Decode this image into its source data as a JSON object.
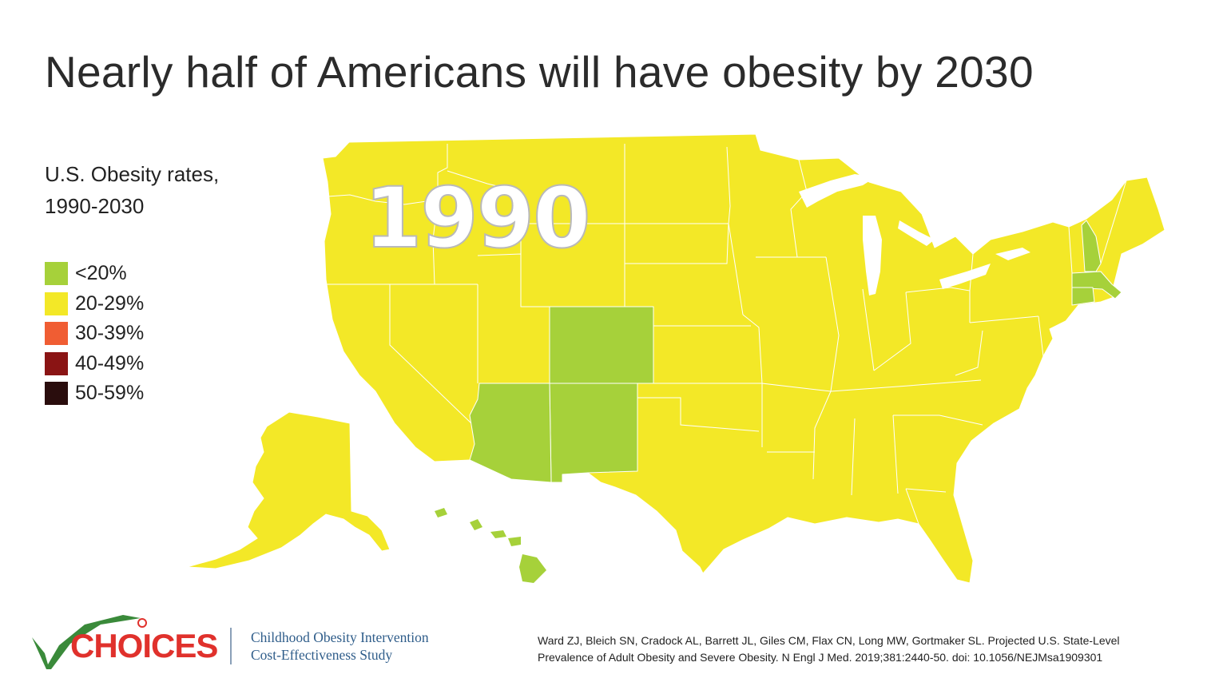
{
  "title": "Nearly half of Americans will have obesity by 2030",
  "legend": {
    "title_line1": "U.S. Obesity rates,",
    "title_line2": "1990-2030",
    "items": [
      {
        "label": "<20%",
        "color": "#a6d13a"
      },
      {
        "label": "20-29%",
        "color": "#f3e827"
      },
      {
        "label": "30-39%",
        "color": "#f05d33"
      },
      {
        "label": "40-49%",
        "color": "#8a1414"
      },
      {
        "label": "50-59%",
        "color": "#2a0d0d"
      }
    ]
  },
  "map": {
    "year": "1990",
    "state_colors": {
      "low": "#a6d13a",
      "mid": "#f3e827"
    },
    "low_states": [
      "Colorado",
      "Arizona",
      "New Mexico",
      "Hawaii",
      "New Hampshire",
      "Massachusetts",
      "Connecticut"
    ]
  },
  "footer": {
    "brand": "CHOICES",
    "study_line1": "Childhood Obesity Intervention",
    "study_line2": "Cost-Effectiveness Study",
    "citation_line1": "Ward ZJ, Bleich SN, Cradock AL, Barrett JL, Giles CM, Flax CN, Long MW, Gortmaker SL. Projected U.S. State-Level",
    "citation_line2": "Prevalence of Adult Obesity and Severe Obesity. N Engl J Med. 2019;381:2440-50. doi: 10.1056/NEJMsa1909301"
  }
}
